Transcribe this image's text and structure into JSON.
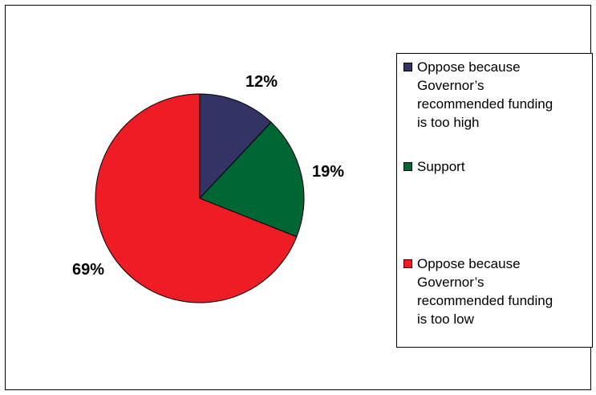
{
  "chart_data": {
    "type": "pie",
    "title": "",
    "slices": [
      {
        "label": "Oppose because Governor’s recommended funding is too high",
        "value": 12,
        "data_label": "12%",
        "color": "#333366"
      },
      {
        "label": "Support",
        "value": 19,
        "data_label": "19%",
        "color": "#006633"
      },
      {
        "label": "Oppose because Governor’s recommended funding is too low",
        "value": 69,
        "data_label": "69%",
        "color": "#ee1c25"
      }
    ],
    "legend": {
      "placement": "right",
      "entries": [
        {
          "lines": [
            "Oppose because",
            "Governor’s",
            "recommended funding",
            "is too high"
          ],
          "color": "#333366"
        },
        {
          "lines": [
            "Support"
          ],
          "color": "#006633"
        },
        {
          "lines": [
            "Oppose because",
            "Governor’s",
            "recommended funding",
            "is too low"
          ],
          "color": "#ee1c25"
        }
      ]
    }
  }
}
